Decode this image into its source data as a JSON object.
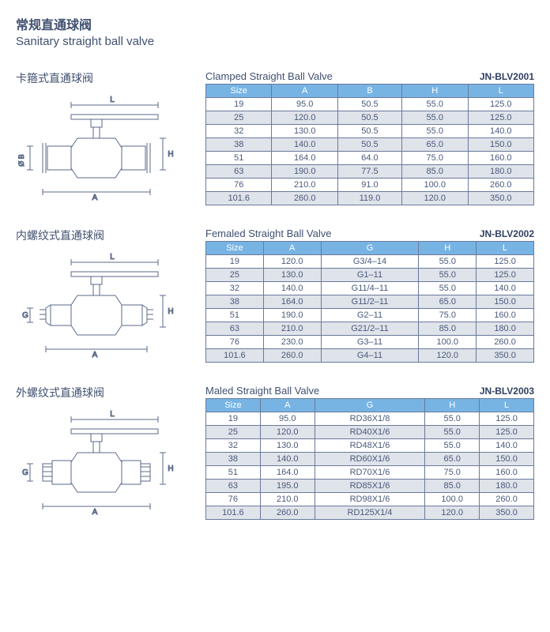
{
  "page": {
    "title_cn": "常规直通球阀",
    "title_en": "Sanitary straight ball valve"
  },
  "section1": {
    "title_cn": "卡箍式直通球阀",
    "title_en": "Clamped Straight Ball Valve",
    "code": "JN-BLV2001",
    "columns": [
      "Size",
      "A",
      "B",
      "H",
      "L"
    ],
    "rows": [
      [
        "19",
        "95.0",
        "50.5",
        "55.0",
        "125.0"
      ],
      [
        "25",
        "120.0",
        "50.5",
        "55.0",
        "125.0"
      ],
      [
        "32",
        "130.0",
        "50.5",
        "55.0",
        "140.0"
      ],
      [
        "38",
        "140.0",
        "50.5",
        "65.0",
        "150.0"
      ],
      [
        "51",
        "164.0",
        "64.0",
        "75.0",
        "160.0"
      ],
      [
        "63",
        "190.0",
        "77.5",
        "85.0",
        "180.0"
      ],
      [
        "76",
        "210.0",
        "91.0",
        "100.0",
        "260.0"
      ],
      [
        "101.6",
        "260.0",
        "119.0",
        "120.0",
        "350.0"
      ]
    ],
    "dim_labels": {
      "L": "L",
      "A": "A",
      "B": "Ø B",
      "H": "H"
    }
  },
  "section2": {
    "title_cn": "内螺纹式直通球阀",
    "title_en": "Femaled Straight Ball Valve",
    "code": "JN-BLV2002",
    "columns": [
      "Size",
      "A",
      "G",
      "H",
      "L"
    ],
    "rows": [
      [
        "19",
        "120.0",
        "G3/4–14",
        "55.0",
        "125.0"
      ],
      [
        "25",
        "130.0",
        "G1–11",
        "55.0",
        "125.0"
      ],
      [
        "32",
        "140.0",
        "G11/4–11",
        "55.0",
        "140.0"
      ],
      [
        "38",
        "164.0",
        "G11/2–11",
        "65.0",
        "150.0"
      ],
      [
        "51",
        "190.0",
        "G2–11",
        "75.0",
        "160.0"
      ],
      [
        "63",
        "210.0",
        "G21/2–11",
        "85.0",
        "180.0"
      ],
      [
        "76",
        "230.0",
        "G3–11",
        "100.0",
        "260.0"
      ],
      [
        "101.6",
        "260.0",
        "G4–11",
        "120.0",
        "350.0"
      ]
    ],
    "dim_labels": {
      "L": "L",
      "A": "A",
      "G": "G",
      "H": "H"
    }
  },
  "section3": {
    "title_cn": "外螺纹式直通球阀",
    "title_en": "Maled Straight Ball Valve",
    "code": "JN-BLV2003",
    "columns": [
      "Size",
      "A",
      "G",
      "H",
      "L"
    ],
    "rows": [
      [
        "19",
        "95.0",
        "RD36X1/8",
        "55.0",
        "125.0"
      ],
      [
        "25",
        "120.0",
        "RD40X1/6",
        "55.0",
        "125.0"
      ],
      [
        "32",
        "130.0",
        "RD48X1/6",
        "55.0",
        "140.0"
      ],
      [
        "38",
        "140.0",
        "RD60X1/6",
        "65.0",
        "150.0"
      ],
      [
        "51",
        "164.0",
        "RD70X1/6",
        "75.0",
        "160.0"
      ],
      [
        "63",
        "195.0",
        "RD85X1/6",
        "85.0",
        "180.0"
      ],
      [
        "76",
        "210.0",
        "RD98X1/6",
        "100.0",
        "260.0"
      ],
      [
        "101.6",
        "260.0",
        "RD125X1/4",
        "120.0",
        "350.0"
      ]
    ],
    "dim_labels": {
      "L": "L",
      "A": "A",
      "G": "G",
      "H": "H"
    }
  },
  "styles": {
    "header_bg": "#77b4e4",
    "alt_row_bg": "#dfe3ea",
    "border_color": "#6a7a9a",
    "text_color": "#4a5a7a",
    "diagram_stroke": "#5a6a8a"
  }
}
